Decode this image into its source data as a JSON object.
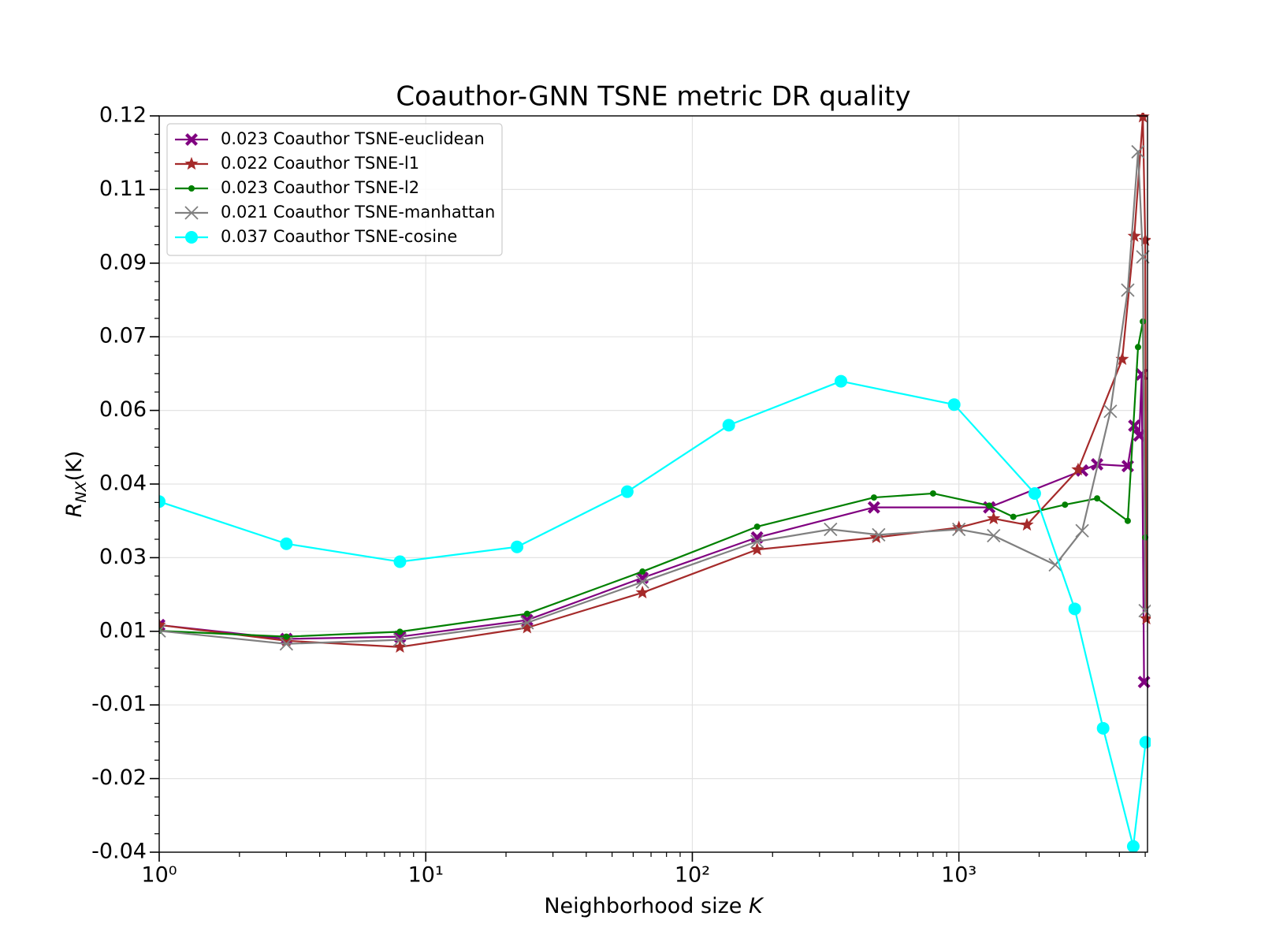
{
  "chart_data": {
    "type": "line",
    "title": "Coauthor-GNN TSNE metric DR quality",
    "xlabel": [
      "Neighborhood size ",
      "K"
    ],
    "ylabel": [
      "R",
      "NX",
      "(K)"
    ],
    "xscale": "log",
    "grid": true,
    "legend": "upper left",
    "xlim": [
      1,
      5100
    ],
    "ylim": [
      -0.04,
      0.124
    ],
    "xticks": [
      {
        "value": 1,
        "label": "10⁰"
      },
      {
        "value": 10,
        "label": "10¹"
      },
      {
        "value": 100,
        "label": "10²"
      },
      {
        "value": 1000,
        "label": "10³"
      }
    ],
    "yticks": [
      {
        "value": -0.04,
        "label": "-0.04"
      },
      {
        "value": -0.0236,
        "label": "-0.02"
      },
      {
        "value": -0.0072,
        "label": "-0.01"
      },
      {
        "value": 0.0092,
        "label": "0.01"
      },
      {
        "value": 0.0256,
        "label": "0.03"
      },
      {
        "value": 0.042,
        "label": "0.04"
      },
      {
        "value": 0.0584,
        "label": "0.06"
      },
      {
        "value": 0.0748,
        "label": "0.07"
      },
      {
        "value": 0.0912,
        "label": "0.09"
      },
      {
        "value": 0.1076,
        "label": "0.11"
      },
      {
        "value": 0.124,
        "label": "0.12"
      }
    ],
    "series": [
      {
        "name": "0.023 Coauthor TSNE-euclidean",
        "color": "#800080",
        "marker": "X",
        "x": [
          1,
          3,
          8,
          24,
          65,
          175,
          480,
          1300,
          2900,
          3300,
          4300,
          4550,
          4750,
          4850,
          4950
        ],
        "values": [
          0.0106,
          0.0075,
          0.008,
          0.0117,
          0.0211,
          0.0301,
          0.0368,
          0.0368,
          0.045,
          0.0464,
          0.046,
          0.055,
          0.0528,
          0.0664,
          -0.0021
        ]
      },
      {
        "name": "0.022 Coauthor TSNE-l1",
        "color": "#a52a2a",
        "marker": "*",
        "x": [
          1,
          3,
          8,
          24,
          65,
          175,
          490,
          1000,
          1350,
          1800,
          2800,
          4100,
          4550,
          4900,
          5000,
          5050
        ],
        "values": [
          0.0106,
          0.0071,
          0.0057,
          0.01,
          0.0178,
          0.0274,
          0.0301,
          0.0323,
          0.0343,
          0.0329,
          0.0452,
          0.0698,
          0.0972,
          0.1238,
          0.0963,
          0.012
        ]
      },
      {
        "name": "0.023 Coauthor TSNE-l2",
        "color": "#008000",
        "marker": ".",
        "x": [
          1,
          3,
          8,
          24,
          65,
          175,
          480,
          800,
          1300,
          1600,
          2500,
          3300,
          4300,
          4700,
          4900,
          5000
        ],
        "values": [
          0.0093,
          0.008,
          0.0091,
          0.0131,
          0.0225,
          0.0325,
          0.039,
          0.0399,
          0.0372,
          0.0347,
          0.0374,
          0.0388,
          0.0338,
          0.0725,
          0.0782,
          0.0301
        ]
      },
      {
        "name": "0.021 Coauthor TSNE-manhattan",
        "color": "#808080",
        "marker": "x",
        "x": [
          1,
          3,
          8,
          24,
          65,
          175,
          330,
          500,
          1000,
          1350,
          2300,
          2900,
          3700,
          4300,
          4700,
          4900,
          5000
        ],
        "values": [
          0.0093,
          0.0064,
          0.0073,
          0.0111,
          0.0202,
          0.0292,
          0.0319,
          0.0307,
          0.0319,
          0.0305,
          0.024,
          0.0316,
          0.0582,
          0.0852,
          0.116,
          0.0926,
          0.0138
        ]
      },
      {
        "name": "0.037 Coauthor TSNE-cosine",
        "color": "#00ffff",
        "marker": "o",
        "x": [
          1,
          3,
          8,
          22,
          57,
          137,
          361,
          960,
          1925,
          2720,
          3476,
          4510,
          5020
        ],
        "values": [
          0.0381,
          0.0287,
          0.0247,
          0.028,
          0.0403,
          0.0551,
          0.0649,
          0.0597,
          0.0399,
          0.0142,
          -0.0124,
          -0.0387,
          -0.0155
        ]
      }
    ]
  }
}
